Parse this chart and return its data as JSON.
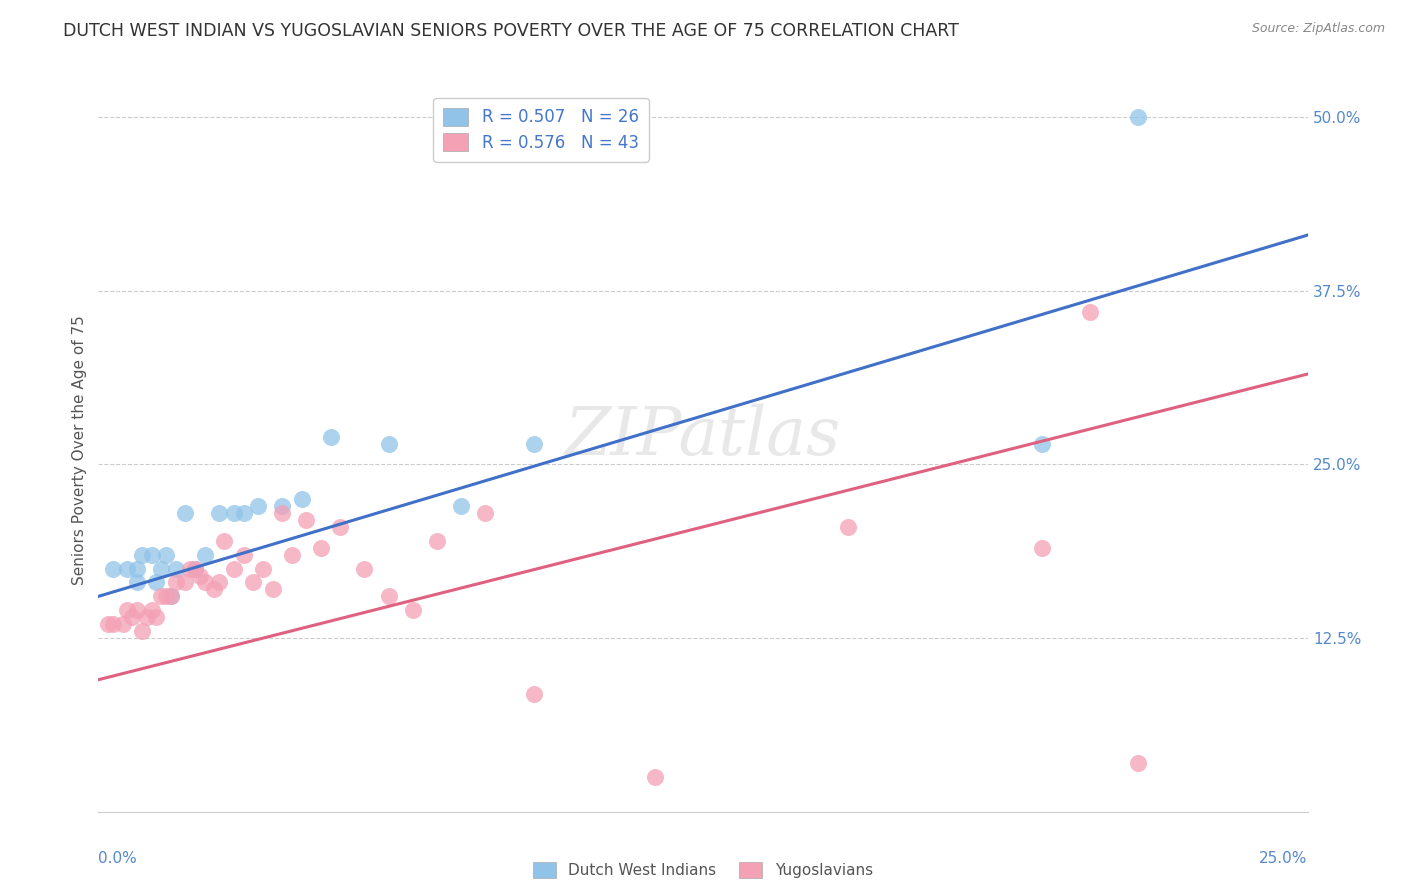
{
  "title": "DUTCH WEST INDIAN VS YUGOSLAVIAN SENIORS POVERTY OVER THE AGE OF 75 CORRELATION CHART",
  "source": "Source: ZipAtlas.com",
  "ylabel": "Seniors Poverty Over the Age of 75",
  "blue_r": 0.507,
  "blue_n": 26,
  "pink_r": 0.576,
  "pink_n": 43,
  "legend_label_blue": "Dutch West Indians",
  "legend_label_pink": "Yugoslavians",
  "blue_color": "#91C3E8",
  "pink_color": "#F4A0B5",
  "blue_line_color": "#4070C8",
  "pink_line_color": "#E06080",
  "watermark": "ZIPatlas",
  "xlim": [
    0.0,
    0.25
  ],
  "ylim": [
    0.0,
    0.52
  ],
  "ytick_vals": [
    0.125,
    0.25,
    0.375,
    0.5
  ],
  "ytick_labels": [
    "12.5%",
    "25.0%",
    "37.5%",
    "50.0%"
  ],
  "blue_line_x0": 0.0,
  "blue_line_y0": 0.155,
  "blue_line_x1": 0.25,
  "blue_line_y1": 0.415,
  "pink_line_x0": 0.0,
  "pink_line_y0": 0.095,
  "pink_line_x1": 0.25,
  "pink_line_y1": 0.315,
  "blue_x": [
    0.003,
    0.006,
    0.008,
    0.008,
    0.009,
    0.011,
    0.012,
    0.013,
    0.014,
    0.015,
    0.016,
    0.018,
    0.02,
    0.022,
    0.025,
    0.028,
    0.03,
    0.033,
    0.038,
    0.042,
    0.048,
    0.06,
    0.075,
    0.09,
    0.195,
    0.215
  ],
  "blue_y": [
    0.175,
    0.175,
    0.165,
    0.175,
    0.185,
    0.185,
    0.165,
    0.175,
    0.185,
    0.155,
    0.175,
    0.215,
    0.175,
    0.185,
    0.215,
    0.215,
    0.215,
    0.22,
    0.22,
    0.225,
    0.27,
    0.265,
    0.22,
    0.265,
    0.265,
    0.5
  ],
  "pink_x": [
    0.002,
    0.003,
    0.005,
    0.006,
    0.007,
    0.008,
    0.009,
    0.01,
    0.011,
    0.012,
    0.013,
    0.014,
    0.015,
    0.016,
    0.018,
    0.019,
    0.02,
    0.021,
    0.022,
    0.024,
    0.025,
    0.026,
    0.028,
    0.03,
    0.032,
    0.034,
    0.036,
    0.038,
    0.04,
    0.043,
    0.046,
    0.05,
    0.055,
    0.06,
    0.065,
    0.07,
    0.08,
    0.09,
    0.115,
    0.155,
    0.195,
    0.205,
    0.215
  ],
  "pink_y": [
    0.135,
    0.135,
    0.135,
    0.145,
    0.14,
    0.145,
    0.13,
    0.14,
    0.145,
    0.14,
    0.155,
    0.155,
    0.155,
    0.165,
    0.165,
    0.175,
    0.175,
    0.17,
    0.165,
    0.16,
    0.165,
    0.195,
    0.175,
    0.185,
    0.165,
    0.175,
    0.16,
    0.215,
    0.185,
    0.21,
    0.19,
    0.205,
    0.175,
    0.155,
    0.145,
    0.195,
    0.215,
    0.085,
    0.025,
    0.205,
    0.19,
    0.36,
    0.035
  ]
}
